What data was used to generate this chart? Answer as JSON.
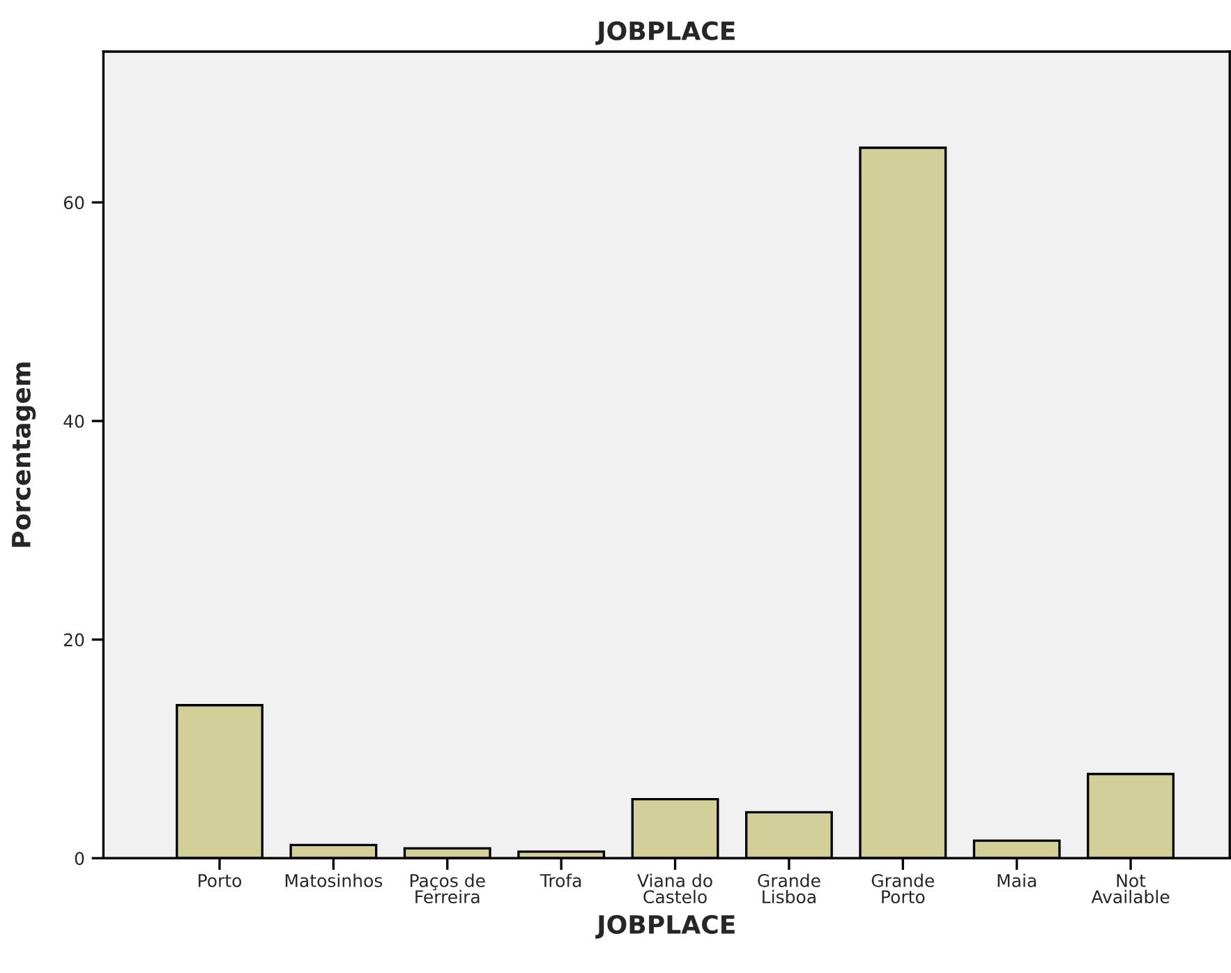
{
  "chart_data": {
    "type": "bar",
    "title": "JOBPLACE",
    "xlabel": "JOBPLACE",
    "ylabel": "Porcentagem",
    "categories": [
      "Porto",
      "Matosinhos",
      "Paços de\nFerreira",
      "Trofa",
      "Viana do\nCastelo",
      "Grande\nLisboa",
      "Grande\nPorto",
      "Maia",
      "Not\nAvailable"
    ],
    "values": [
      14.0,
      1.2,
      0.9,
      0.6,
      5.4,
      4.2,
      65.0,
      1.6,
      7.7
    ],
    "color": "#d3cf98",
    "ylim": [
      0,
      73.8
    ],
    "yticks": [
      0,
      20,
      40,
      60
    ],
    "grid": false
  }
}
